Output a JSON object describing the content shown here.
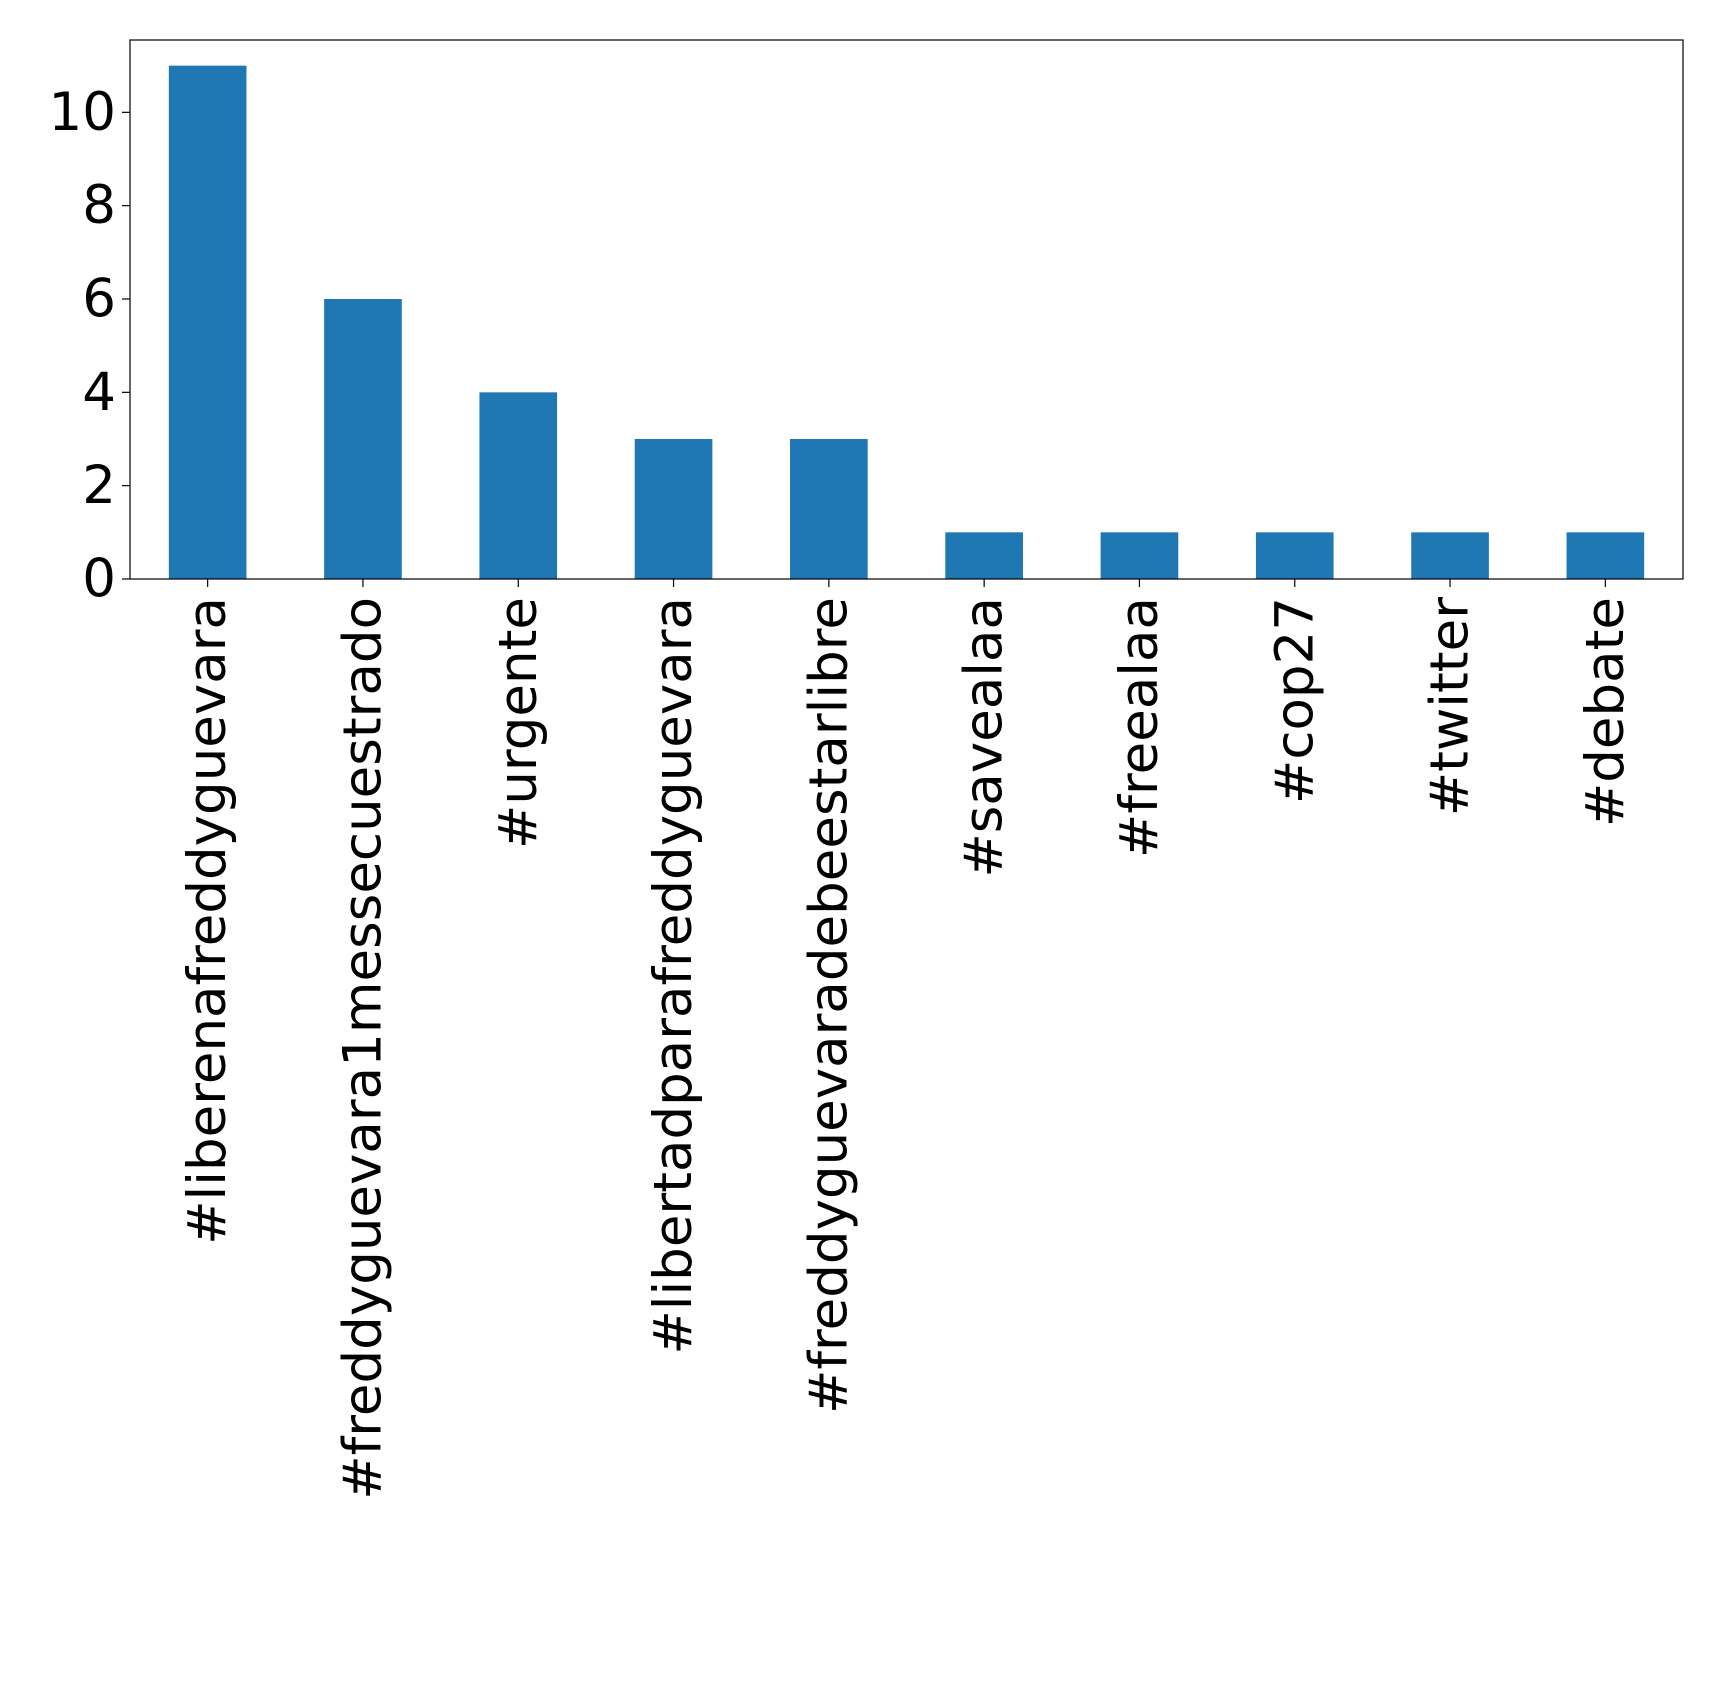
{
  "chart_data": {
    "type": "bar",
    "categories": [
      "#liberenafreddyguevara",
      "#freddyguevara1messecuestrado",
      "#urgente",
      "#libertadparafreddyguevara",
      "#freddyguevaradebeestarlibre",
      "#savealaa",
      "#freealaa",
      "#cop27",
      "#twitter",
      "#debate"
    ],
    "values": [
      11,
      6,
      4,
      3,
      3,
      1,
      1,
      1,
      1,
      1
    ],
    "title": "",
    "xlabel": "",
    "ylabel": "",
    "ylim": [
      0,
      11.55
    ],
    "yticks": [
      0,
      2,
      4,
      6,
      8,
      10
    ],
    "grid": false,
    "legend": "none",
    "bar_color": "#1f77b4",
    "xtick_rotation": "vertical"
  }
}
